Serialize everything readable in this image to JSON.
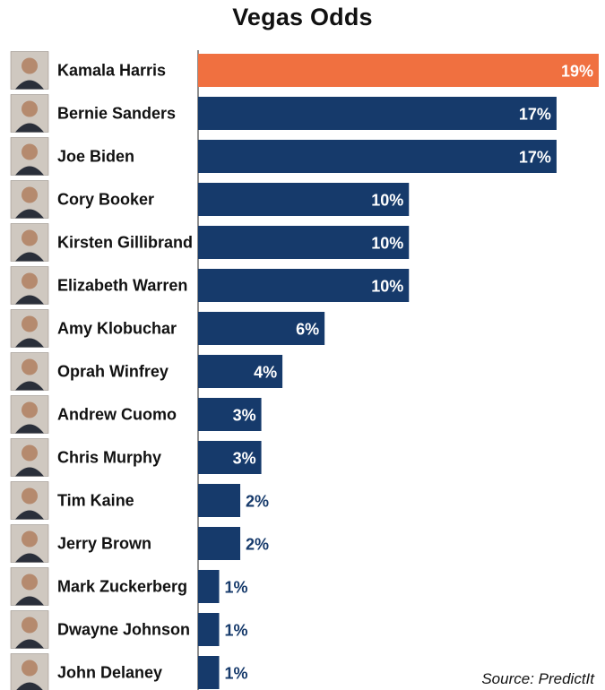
{
  "chart_data": {
    "type": "bar",
    "orientation": "horizontal",
    "title": "Vegas Odds",
    "source": "Source: PredictIt",
    "xlim": [
      0,
      19
    ],
    "value_suffix": "%",
    "categories": [
      "Kamala Harris",
      "Bernie Sanders",
      "Joe Biden",
      "Cory Booker",
      "Kirsten Gillibrand",
      "Elizabeth Warren",
      "Amy Klobuchar",
      "Oprah Winfrey",
      "Andrew Cuomo",
      "Chris Murphy",
      "Tim Kaine",
      "Jerry Brown",
      "Mark Zuckerberg",
      "Dwayne Johnson",
      "John Delaney"
    ],
    "values": [
      19,
      17,
      17,
      10,
      10,
      10,
      6,
      4,
      3,
      3,
      2,
      2,
      1,
      1,
      1
    ],
    "data_labels": [
      "19%",
      "17%",
      "17%",
      "10%",
      "10%",
      "10%",
      "6%",
      "4%",
      "3%",
      "3%",
      "2%",
      "2%",
      "1%",
      "1%",
      "1%"
    ],
    "highlight_index": 0,
    "colors": {
      "highlight": "#f07040",
      "bar": "#163a6b",
      "label_inside": "#ffffff",
      "label_outside": "#163a6b",
      "text": "#111111"
    },
    "row_icons": "portrait-photo"
  }
}
